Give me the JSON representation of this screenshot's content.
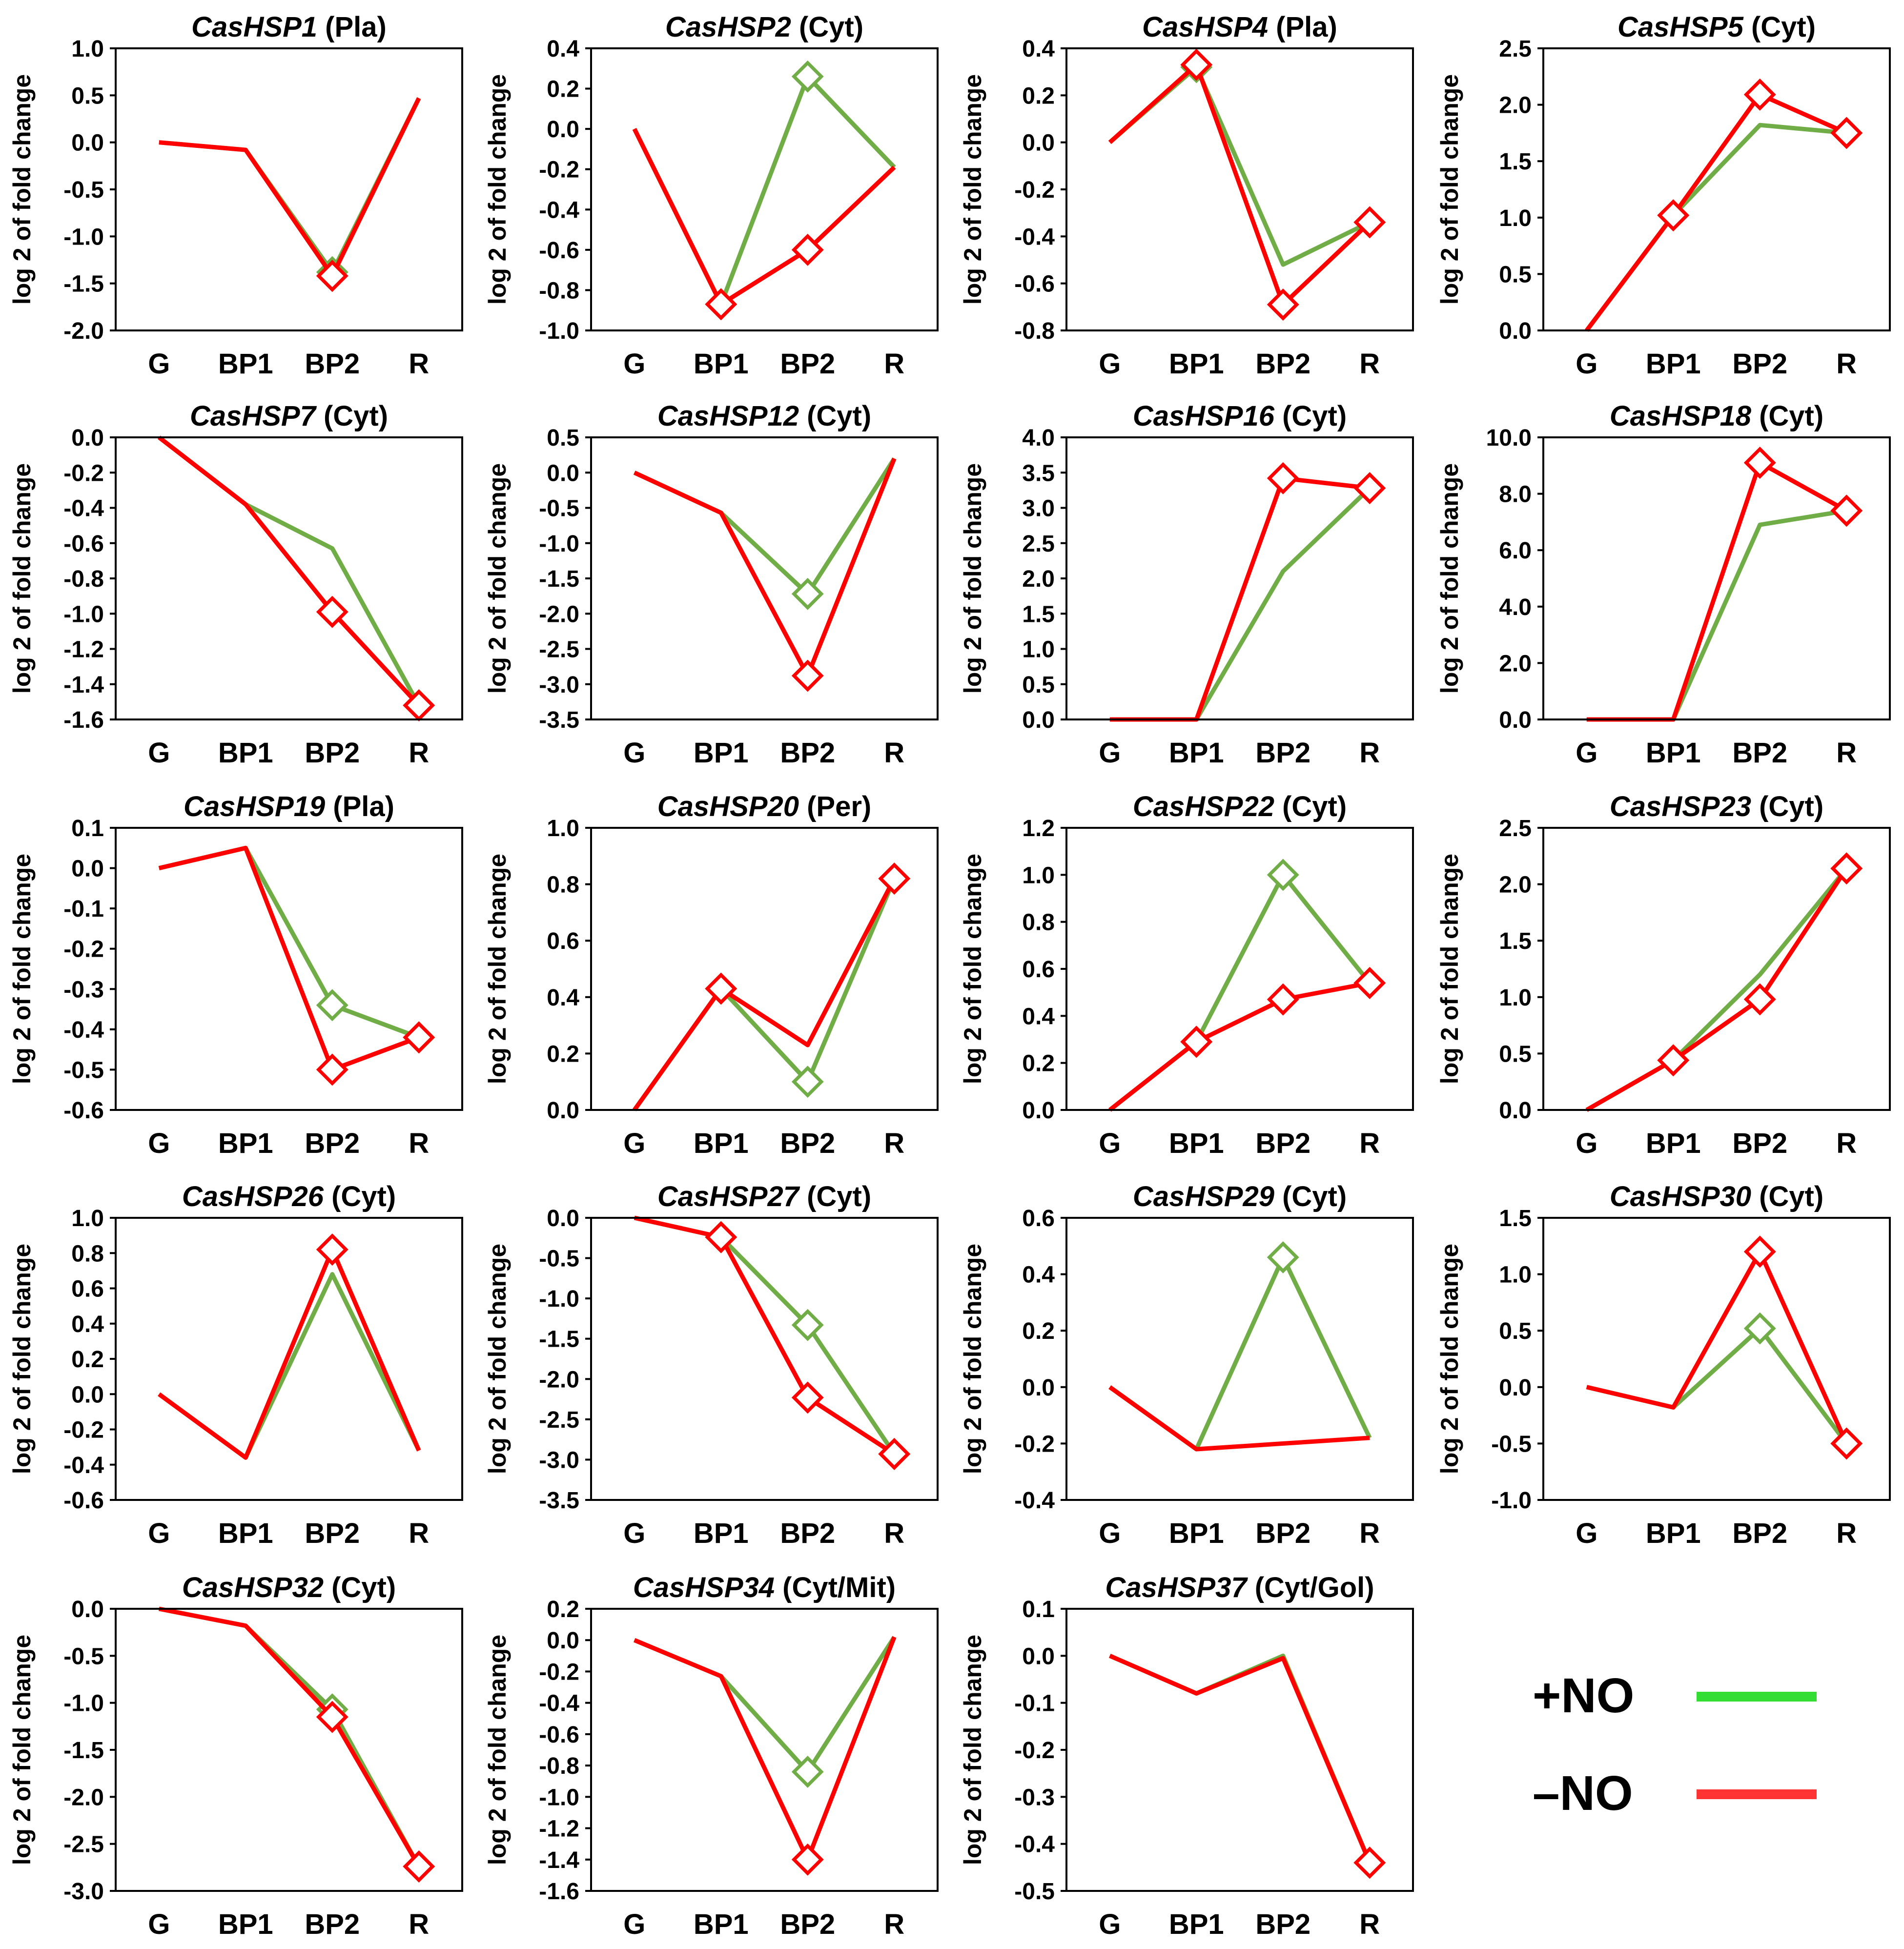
{
  "colors": {
    "plus_no": "#70AD47",
    "minus_no": "#FF0000",
    "legend_plus": "#33DD33",
    "legend_minus": "#FF3333"
  },
  "categories": [
    "G",
    "BP1",
    "BP2",
    "R"
  ],
  "ylabel": "log 2 of fold change",
  "legend": {
    "plus_label": "+NO",
    "minus_label": "–NO"
  },
  "chart_data": [
    {
      "type": "line",
      "gene": "CasHSP1",
      "loc": "(Pla)",
      "ylim": [
        -2.0,
        1.0
      ],
      "yticks": [
        "1.0",
        "0.5",
        "0.0",
        "-0.5",
        "-1.0",
        "-1.5",
        "-2.0"
      ],
      "series": [
        {
          "name": "+NO",
          "values": [
            0.0,
            -0.08,
            -1.38,
            0.47
          ],
          "markers": [
            false,
            false,
            true,
            false
          ]
        },
        {
          "name": "–NO",
          "values": [
            0.0,
            -0.08,
            -1.42,
            0.47
          ],
          "markers": [
            false,
            false,
            true,
            false
          ]
        }
      ]
    },
    {
      "type": "line",
      "gene": "CasHSP2",
      "loc": "(Cyt)",
      "ylim": [
        -1.0,
        0.4
      ],
      "yticks": [
        "0.4",
        "0.2",
        "0.0",
        "-0.2",
        "-0.4",
        "-0.6",
        "-0.8",
        "-1.0"
      ],
      "series": [
        {
          "name": "+NO",
          "values": [
            0.0,
            -0.87,
            0.26,
            -0.19
          ],
          "markers": [
            false,
            true,
            true,
            false
          ]
        },
        {
          "name": "–NO",
          "values": [
            0.0,
            -0.87,
            -0.6,
            -0.19
          ],
          "markers": [
            false,
            true,
            true,
            false
          ]
        }
      ]
    },
    {
      "type": "line",
      "gene": "CasHSP4",
      "loc": "(Pla)",
      "ylim": [
        -0.8,
        0.4
      ],
      "yticks": [
        "0.4",
        "0.2",
        "0.0",
        "-0.2",
        "-0.4",
        "-0.6",
        "-0.8"
      ],
      "series": [
        {
          "name": "+NO",
          "values": [
            0.0,
            0.32,
            -0.52,
            -0.34
          ],
          "markers": [
            false,
            true,
            false,
            true
          ]
        },
        {
          "name": "–NO",
          "values": [
            0.0,
            0.33,
            -0.69,
            -0.34
          ],
          "markers": [
            false,
            true,
            true,
            true
          ]
        }
      ]
    },
    {
      "type": "line",
      "gene": "CasHSP5",
      "loc": "(Cyt)",
      "ylim": [
        0.0,
        2.5
      ],
      "yticks": [
        "2.5",
        "2.0",
        "1.5",
        "1.0",
        "0.5",
        "0.0"
      ],
      "series": [
        {
          "name": "+NO",
          "values": [
            0.0,
            1.02,
            1.82,
            1.75
          ],
          "markers": [
            false,
            true,
            false,
            true
          ]
        },
        {
          "name": "–NO",
          "values": [
            0.0,
            1.02,
            2.09,
            1.75
          ],
          "markers": [
            false,
            true,
            true,
            true
          ]
        }
      ]
    },
    {
      "type": "line",
      "gene": "CasHSP7",
      "loc": "(Cyt)",
      "ylim": [
        -1.6,
        0.0
      ],
      "yticks": [
        "0.0",
        "-0.2",
        "-0.4",
        "-0.6",
        "-0.8",
        "-1.0",
        "-1.2",
        "-1.4",
        "-1.6"
      ],
      "series": [
        {
          "name": "+NO",
          "values": [
            0.0,
            -0.38,
            -0.63,
            -1.52
          ],
          "markers": [
            false,
            false,
            false,
            true
          ]
        },
        {
          "name": "–NO",
          "values": [
            0.0,
            -0.38,
            -0.99,
            -1.52
          ],
          "markers": [
            false,
            false,
            true,
            true
          ]
        }
      ]
    },
    {
      "type": "line",
      "gene": "CasHSP12",
      "loc": "(Cyt)",
      "ylim": [
        -3.5,
        0.5
      ],
      "yticks": [
        "0.5",
        "0.0",
        "-0.5",
        "-1.0",
        "-1.5",
        "-2.0",
        "-2.5",
        "-3.0",
        "-3.5"
      ],
      "series": [
        {
          "name": "+NO",
          "values": [
            0.0,
            -0.57,
            -1.72,
            0.2
          ],
          "markers": [
            false,
            false,
            true,
            false
          ]
        },
        {
          "name": "–NO",
          "values": [
            0.0,
            -0.57,
            -2.88,
            0.2
          ],
          "markers": [
            false,
            false,
            true,
            false
          ]
        }
      ]
    },
    {
      "type": "line",
      "gene": "CasHSP16",
      "loc": "(Cyt)",
      "ylim": [
        0.0,
        4.0
      ],
      "yticks": [
        "4.0",
        "3.5",
        "3.0",
        "2.5",
        "2.0",
        "1.5",
        "1.0",
        "0.5",
        "0.0"
      ],
      "series": [
        {
          "name": "+NO",
          "values": [
            0.0,
            0.0,
            2.1,
            3.28
          ],
          "markers": [
            false,
            false,
            false,
            true
          ]
        },
        {
          "name": "–NO",
          "values": [
            0.0,
            0.0,
            3.42,
            3.28
          ],
          "markers": [
            false,
            false,
            true,
            true
          ]
        }
      ]
    },
    {
      "type": "line",
      "gene": "CasHSP18",
      "loc": "(Cyt)",
      "ylim": [
        0.0,
        10.0
      ],
      "yticks": [
        "10.0",
        "8.0",
        "6.0",
        "4.0",
        "2.0",
        "0.0"
      ],
      "series": [
        {
          "name": "+NO",
          "values": [
            0.0,
            0.0,
            6.9,
            7.4
          ],
          "markers": [
            false,
            false,
            false,
            true
          ]
        },
        {
          "name": "–NO",
          "values": [
            0.0,
            0.0,
            9.1,
            7.4
          ],
          "markers": [
            false,
            false,
            true,
            true
          ]
        }
      ]
    },
    {
      "type": "line",
      "gene": "CasHSP19",
      "loc": "(Pla)",
      "ylim": [
        -0.6,
        0.1
      ],
      "yticks": [
        "0.1",
        "0.0",
        "-0.1",
        "-0.2",
        "-0.3",
        "-0.4",
        "-0.5",
        "-0.6"
      ],
      "series": [
        {
          "name": "+NO",
          "values": [
            0.0,
            0.05,
            -0.34,
            -0.42
          ],
          "markers": [
            false,
            false,
            true,
            true
          ]
        },
        {
          "name": "–NO",
          "values": [
            0.0,
            0.05,
            -0.5,
            -0.42
          ],
          "markers": [
            false,
            false,
            true,
            true
          ]
        }
      ]
    },
    {
      "type": "line",
      "gene": "CasHSP20",
      "loc": "(Per)",
      "ylim": [
        0.0,
        1.0
      ],
      "yticks": [
        "1.0",
        "0.8",
        "0.6",
        "0.4",
        "0.2",
        "0.0"
      ],
      "series": [
        {
          "name": "+NO",
          "values": [
            0.0,
            0.43,
            0.1,
            0.82
          ],
          "markers": [
            false,
            true,
            true,
            true
          ]
        },
        {
          "name": "–NO",
          "values": [
            0.0,
            0.43,
            0.23,
            0.82
          ],
          "markers": [
            false,
            true,
            false,
            true
          ]
        }
      ]
    },
    {
      "type": "line",
      "gene": "CasHSP22",
      "loc": "(Cyt)",
      "ylim": [
        0.0,
        1.2
      ],
      "yticks": [
        "1.2",
        "1.0",
        "0.8",
        "0.6",
        "0.4",
        "0.2",
        "0.0"
      ],
      "series": [
        {
          "name": "+NO",
          "values": [
            0.0,
            0.29,
            1.0,
            0.54
          ],
          "markers": [
            false,
            true,
            true,
            true
          ]
        },
        {
          "name": "–NO",
          "values": [
            0.0,
            0.29,
            0.47,
            0.54
          ],
          "markers": [
            false,
            true,
            true,
            true
          ]
        }
      ]
    },
    {
      "type": "line",
      "gene": "CasHSP23",
      "loc": "(Cyt)",
      "ylim": [
        0.0,
        2.5
      ],
      "yticks": [
        "2.5",
        "2.0",
        "1.5",
        "1.0",
        "0.5",
        "0.0"
      ],
      "series": [
        {
          "name": "+NO",
          "values": [
            0.0,
            0.44,
            1.2,
            2.14
          ],
          "markers": [
            false,
            true,
            false,
            true
          ]
        },
        {
          "name": "–NO",
          "values": [
            0.0,
            0.44,
            0.98,
            2.14
          ],
          "markers": [
            false,
            true,
            true,
            true
          ]
        }
      ]
    },
    {
      "type": "line",
      "gene": "CasHSP26",
      "loc": "(Cyt)",
      "ylim": [
        -0.6,
        1.0
      ],
      "yticks": [
        "1.0",
        "0.8",
        "0.6",
        "0.4",
        "0.2",
        "0.0",
        "-0.2",
        "-0.4",
        "-0.6"
      ],
      "series": [
        {
          "name": "+NO",
          "values": [
            0.0,
            -0.36,
            0.68,
            -0.32
          ],
          "markers": [
            false,
            false,
            false,
            false
          ]
        },
        {
          "name": "–NO",
          "values": [
            0.0,
            -0.36,
            0.82,
            -0.32
          ],
          "markers": [
            false,
            false,
            true,
            false
          ]
        }
      ]
    },
    {
      "type": "line",
      "gene": "CasHSP27",
      "loc": "(Cyt)",
      "ylim": [
        -3.5,
        0.0
      ],
      "yticks": [
        "0.0",
        "-0.5",
        "-1.0",
        "-1.5",
        "-2.0",
        "-2.5",
        "-3.0",
        "-3.5"
      ],
      "series": [
        {
          "name": "+NO",
          "values": [
            0.0,
            -0.24,
            -1.33,
            -2.93
          ],
          "markers": [
            false,
            true,
            true,
            true
          ]
        },
        {
          "name": "–NO",
          "values": [
            0.0,
            -0.24,
            -2.23,
            -2.93
          ],
          "markers": [
            false,
            true,
            true,
            true
          ]
        }
      ]
    },
    {
      "type": "line",
      "gene": "CasHSP29",
      "loc": "(Cyt)",
      "ylim": [
        -0.4,
        0.6
      ],
      "yticks": [
        "0.6",
        "0.4",
        "0.2",
        "0.0",
        "-0.2",
        "-0.4"
      ],
      "series": [
        {
          "name": "+NO",
          "values": [
            0.0,
            -0.22,
            0.46,
            -0.18
          ],
          "markers": [
            false,
            false,
            true,
            false
          ]
        },
        {
          "name": "–NO",
          "values": [
            0.0,
            -0.22,
            -0.2,
            -0.18
          ],
          "markers": [
            false,
            false,
            false,
            false
          ]
        }
      ]
    },
    {
      "type": "line",
      "gene": "CasHSP30",
      "loc": "(Cyt)",
      "ylim": [
        -1.0,
        1.5
      ],
      "yticks": [
        "1.5",
        "1.0",
        "0.5",
        "0.0",
        "-0.5",
        "-1.0"
      ],
      "series": [
        {
          "name": "+NO",
          "values": [
            0.0,
            -0.18,
            0.52,
            -0.5
          ],
          "markers": [
            false,
            false,
            true,
            true
          ]
        },
        {
          "name": "–NO",
          "values": [
            0.0,
            -0.18,
            1.2,
            -0.5
          ],
          "markers": [
            false,
            false,
            true,
            true
          ]
        }
      ]
    },
    {
      "type": "line",
      "gene": "CasHSP32",
      "loc": "(Cyt)",
      "ylim": [
        -3.0,
        0.0
      ],
      "yticks": [
        "0.0",
        "-0.5",
        "-1.0",
        "-1.5",
        "-2.0",
        "-2.5",
        "-3.0"
      ],
      "series": [
        {
          "name": "+NO",
          "values": [
            0.0,
            -0.18,
            -1.07,
            -2.74
          ],
          "markers": [
            false,
            false,
            true,
            true
          ]
        },
        {
          "name": "–NO",
          "values": [
            0.0,
            -0.18,
            -1.15,
            -2.74
          ],
          "markers": [
            false,
            false,
            true,
            true
          ]
        }
      ]
    },
    {
      "type": "line",
      "gene": "CasHSP34",
      "loc": "(Cyt/Mit)",
      "ylim": [
        -1.6,
        0.2
      ],
      "yticks": [
        "0.2",
        "0.0",
        "-0.2",
        "-0.4",
        "-0.6",
        "-0.8",
        "-1.0",
        "-1.2",
        "-1.4",
        "-1.6"
      ],
      "series": [
        {
          "name": "+NO",
          "values": [
            0.0,
            -0.23,
            -0.84,
            0.02
          ],
          "markers": [
            false,
            false,
            true,
            false
          ]
        },
        {
          "name": "–NO",
          "values": [
            0.0,
            -0.23,
            -1.4,
            0.02
          ],
          "markers": [
            false,
            false,
            true,
            false
          ]
        }
      ]
    },
    {
      "type": "line",
      "gene": "CasHSP37",
      "loc": "(Cyt/Gol)",
      "ylim": [
        -0.5,
        0.1
      ],
      "yticks": [
        "0.1",
        "0.0",
        "-0.1",
        "-0.2",
        "-0.3",
        "-0.4",
        "-0.5"
      ],
      "series": [
        {
          "name": "+NO",
          "values": [
            0.0,
            -0.08,
            0.0,
            -0.44
          ],
          "markers": [
            false,
            false,
            false,
            true
          ]
        },
        {
          "name": "–NO",
          "values": [
            0.0,
            -0.08,
            -0.005,
            -0.44
          ],
          "markers": [
            false,
            false,
            false,
            true
          ]
        }
      ]
    }
  ]
}
